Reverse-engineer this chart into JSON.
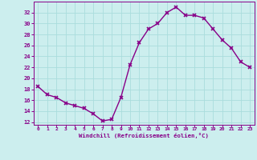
{
  "x": [
    0,
    1,
    2,
    3,
    4,
    5,
    6,
    7,
    8,
    9,
    10,
    11,
    12,
    13,
    14,
    15,
    16,
    17,
    18,
    19,
    20,
    21,
    22,
    23
  ],
  "y": [
    18.5,
    17.0,
    16.5,
    15.5,
    15.0,
    14.5,
    13.5,
    12.2,
    12.5,
    16.5,
    22.5,
    26.5,
    29.0,
    30.0,
    32.0,
    33.0,
    31.5,
    31.5,
    31.0,
    29.0,
    27.0,
    25.5,
    23.0,
    22.0
  ],
  "line_color": "#880088",
  "marker": "x",
  "marker_color": "#880088",
  "bg_color": "#cceeee",
  "grid_color": "#aadddd",
  "xlabel": "Windchill (Refroidissement éolien,°C)",
  "xlabel_color": "#880088",
  "tick_color": "#880088",
  "ylim": [
    11.5,
    34
  ],
  "yticks": [
    12,
    14,
    16,
    18,
    20,
    22,
    24,
    26,
    28,
    30,
    32
  ],
  "xlim": [
    -0.5,
    23.5
  ],
  "xticks": [
    0,
    1,
    2,
    3,
    4,
    5,
    6,
    7,
    8,
    9,
    10,
    11,
    12,
    13,
    14,
    15,
    16,
    17,
    18,
    19,
    20,
    21,
    22,
    23
  ]
}
